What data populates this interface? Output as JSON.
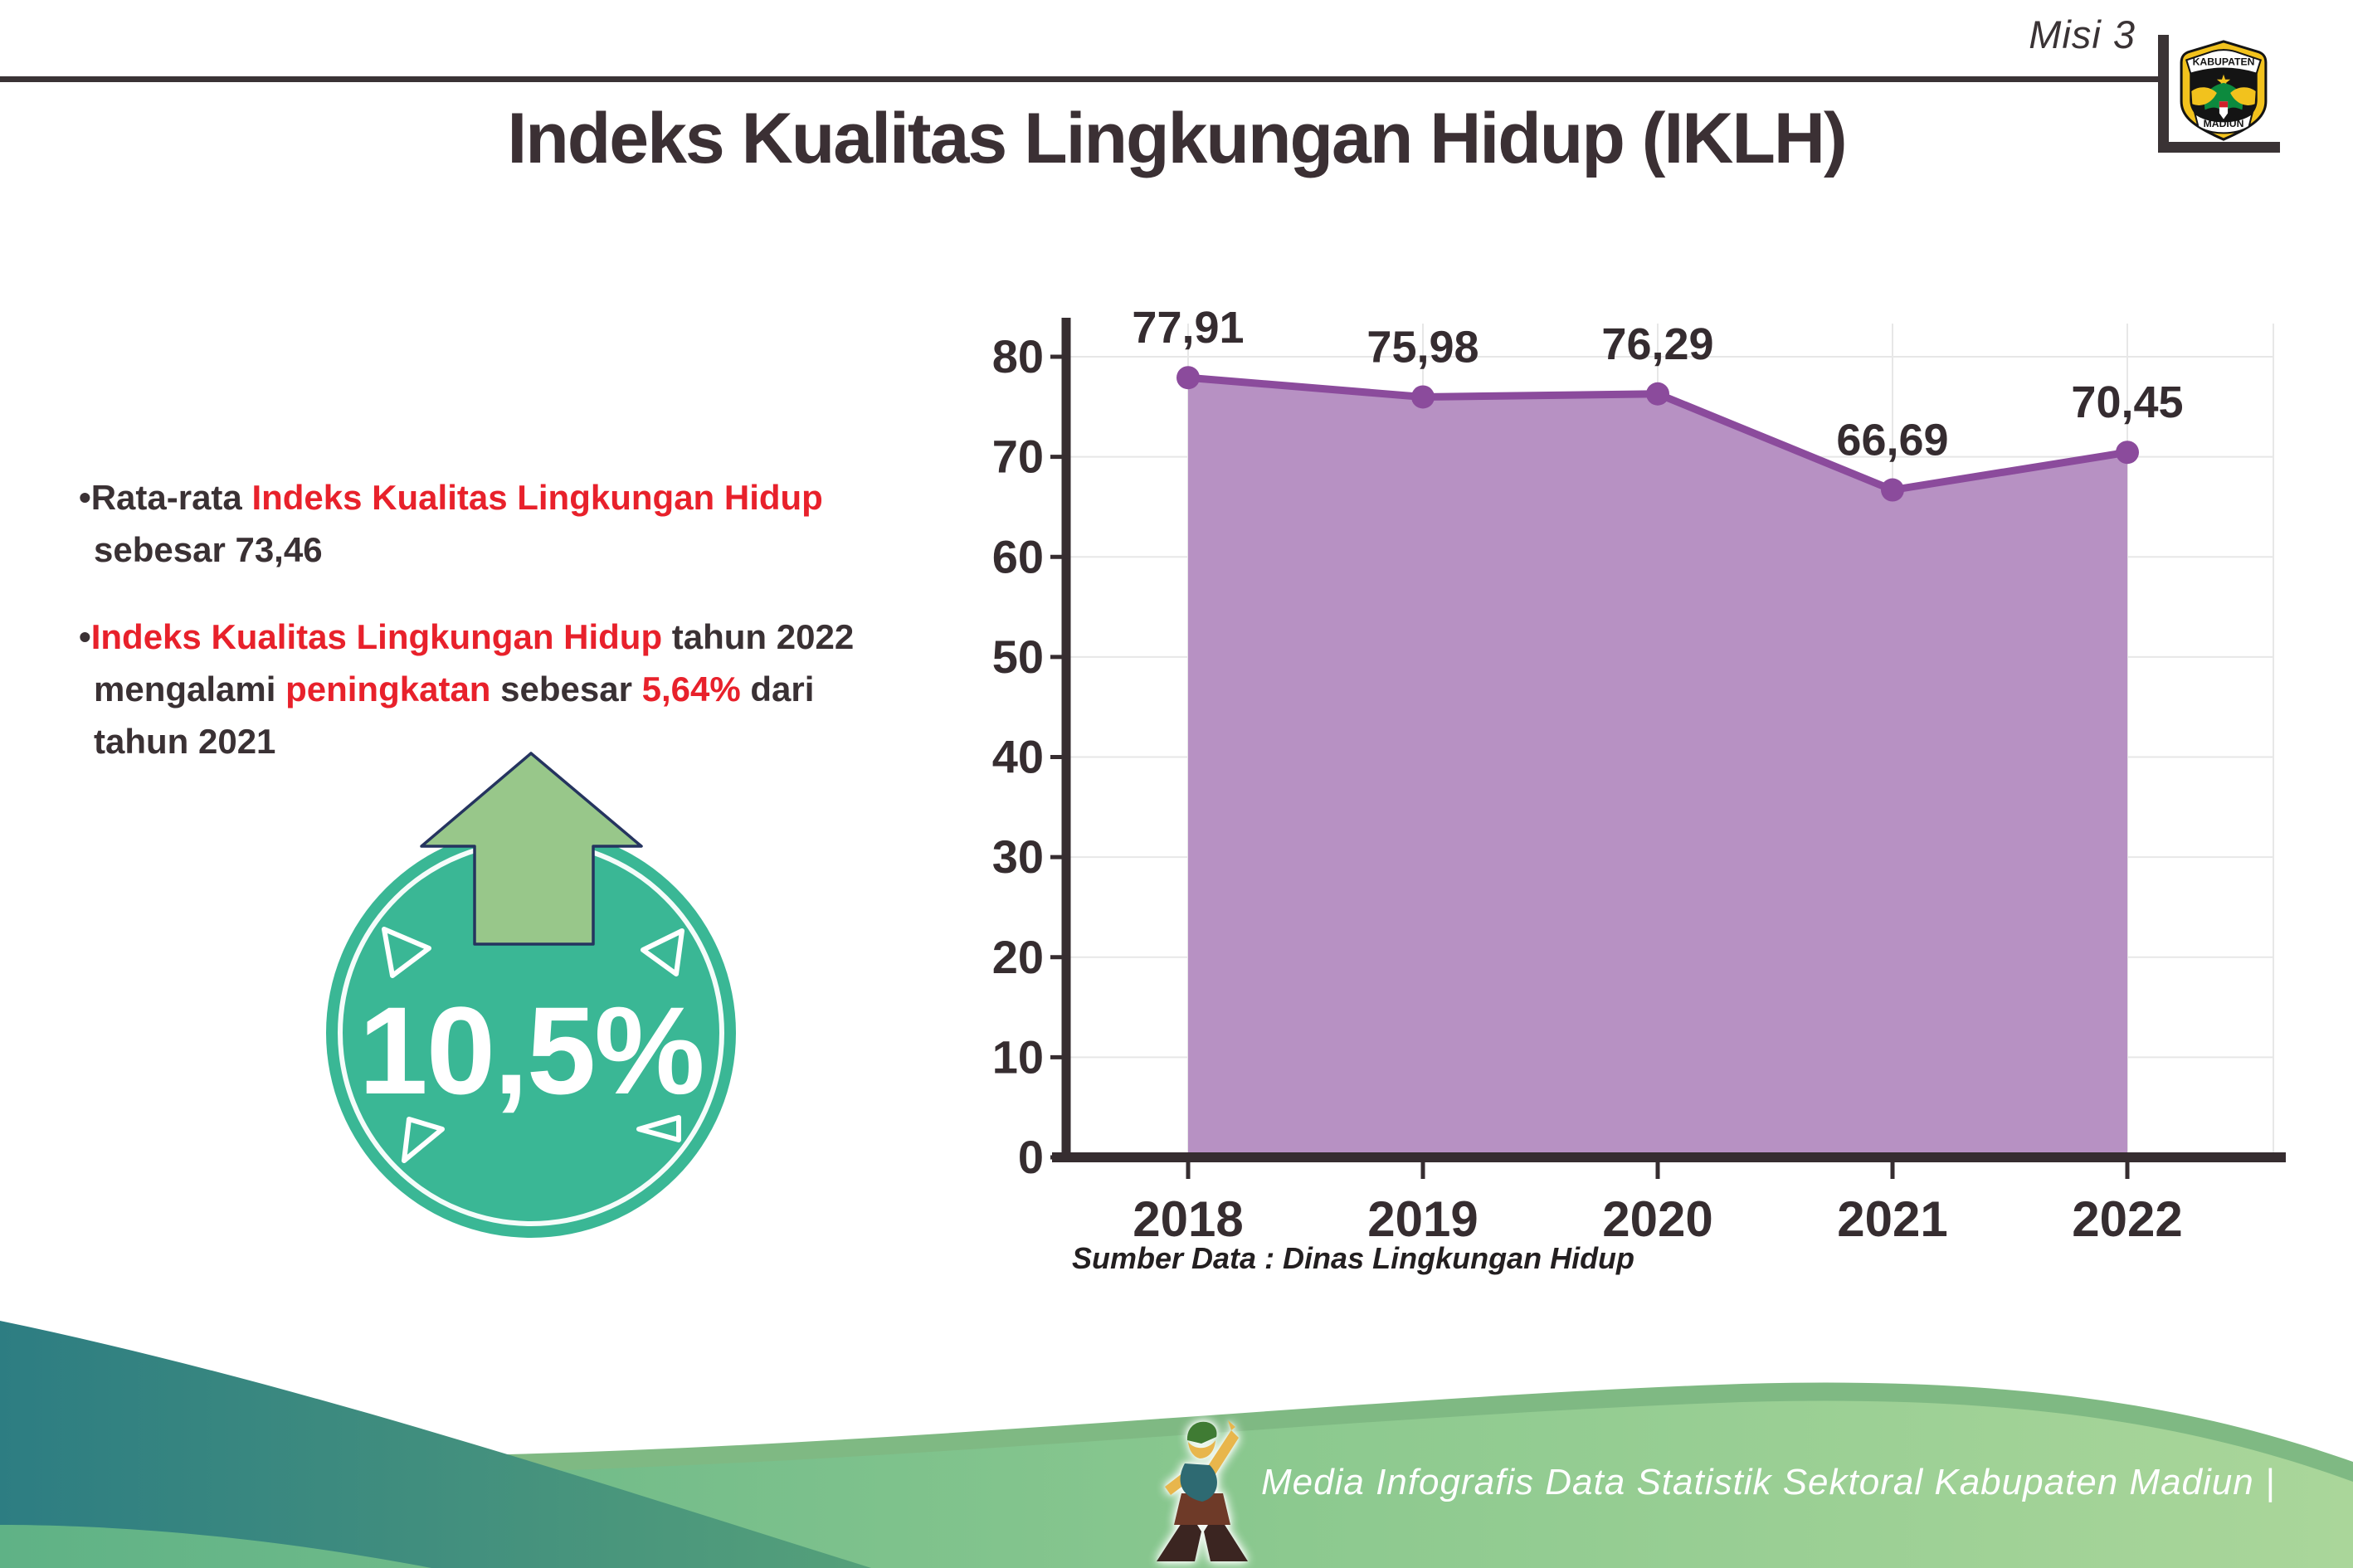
{
  "header": {
    "misi_label": "Misi 3",
    "title": "Indeks Kualitas Lingkungan Hidup (IKLH)",
    "logo_top": "KABUPATEN",
    "logo_bottom": "MADIUN"
  },
  "bullets": {
    "b1": [
      {
        "t": "•Rata-rata ",
        "c": "dark"
      },
      {
        "t": "Indeks Kualitas Lingkungan Hidup",
        "c": "red"
      },
      {
        "t": "sebesar 73,46",
        "c": "dark",
        "br": true
      }
    ],
    "b2": [
      {
        "t": "•",
        "c": "dark"
      },
      {
        "t": "Indeks Kualitas Lingkungan Hidup",
        "c": "red"
      },
      {
        "t": " tahun 2022",
        "c": "dark"
      },
      {
        "t": "mengalami ",
        "c": "dark",
        "br": true
      },
      {
        "t": "peningkatan",
        "c": "red"
      },
      {
        "t": " sebesar ",
        "c": "dark"
      },
      {
        "t": "5,64%",
        "c": "red"
      },
      {
        "t": " dari",
        "c": "dark"
      },
      {
        "t": "tahun 2021",
        "c": "dark",
        "br": true
      }
    ]
  },
  "badge": {
    "value": "10,5%"
  },
  "chart_data": {
    "type": "area",
    "categories": [
      "2018",
      "2019",
      "2020",
      "2021",
      "2022"
    ],
    "values": [
      77.91,
      75.98,
      76.29,
      66.69,
      70.45
    ],
    "point_labels": [
      "77,91",
      "75,98",
      "76,29",
      "66,69",
      "70,45"
    ],
    "title": "",
    "xlabel": "",
    "ylabel": "",
    "ylim": [
      0,
      80
    ],
    "yticks": [
      0,
      10,
      20,
      30,
      40,
      50,
      60,
      70,
      80
    ],
    "grid": true,
    "legend": false
  },
  "source_note": "Sumber Data : Dinas Lingkungan Hidup",
  "footer": {
    "caption": "Media Infografis Data Statistik Sektoral Kabupaten Madiun |"
  },
  "colors": {
    "accent_red": "#e8212b",
    "text_dark": "#3a3134",
    "chart_line": "#8b4b9c",
    "chart_fill": "#b791c3",
    "chart_axis": "#362d30",
    "chart_grid": "#e7e7e7",
    "chart_label": "#352c30",
    "badge_teal": "#3ab795",
    "arrow_green": "#98c78a",
    "footer_teal": "#2d7d82",
    "footer_green_light": "#aad69a"
  }
}
